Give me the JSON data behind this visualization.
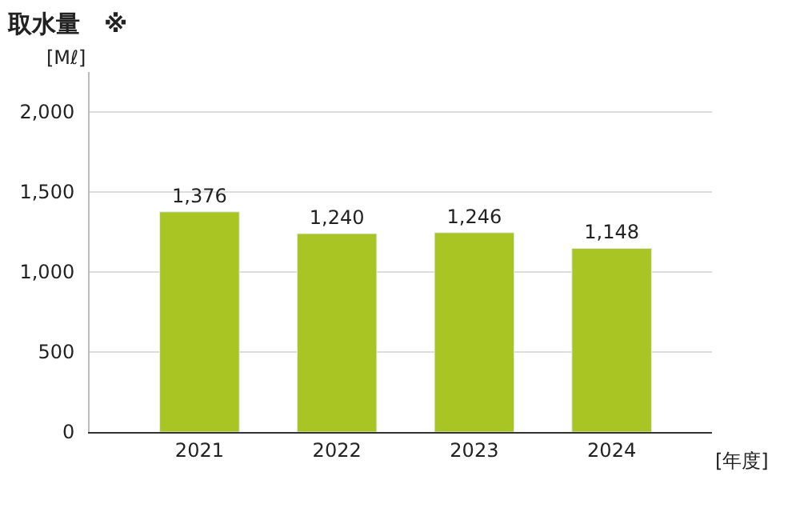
{
  "chart_data": {
    "type": "bar",
    "title": "取水量　※",
    "ylabel": "[Mℓ]",
    "xlabel": "[年度]",
    "categories": [
      "2021",
      "2022",
      "2023",
      "2024"
    ],
    "values": [
      1376,
      1240,
      1246,
      1148
    ],
    "value_labels": [
      "1,376",
      "1,240",
      "1,246",
      "1,148"
    ],
    "color": "#a8c523",
    "ylim": [
      0,
      2250
    ],
    "yticks": [
      {
        "value": 0,
        "label": "0"
      },
      {
        "value": 500,
        "label": "500"
      },
      {
        "value": 1000,
        "label": "1,000"
      },
      {
        "value": 1500,
        "label": "1,500"
      },
      {
        "value": 2000,
        "label": "2,000"
      }
    ],
    "grid": "y",
    "legend": false
  }
}
